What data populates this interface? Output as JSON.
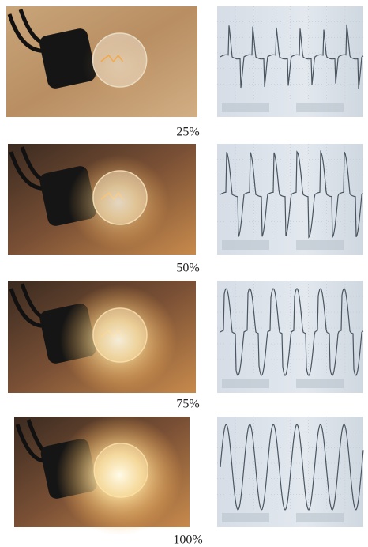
{
  "panels": [
    {
      "label": "25%"
    },
    {
      "label": "50%"
    },
    {
      "label": "75%"
    },
    {
      "label": "100%"
    }
  ]
}
